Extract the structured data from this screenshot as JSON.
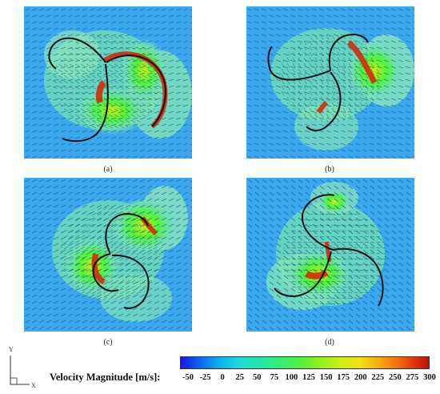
{
  "panels": [
    {
      "caption": "(a)"
    },
    {
      "caption": "(b)"
    },
    {
      "caption": "(c)"
    },
    {
      "caption": "(d)"
    }
  ],
  "colorbar": {
    "title": "Velocity Magnitude [m/s]:",
    "ticks": [
      "-50",
      "-25",
      "0",
      "25",
      "50",
      "75",
      "100",
      "125",
      "150",
      "175",
      "200",
      "225",
      "250",
      "275",
      "300"
    ],
    "range": [
      -50,
      300
    ],
    "colors": [
      "#1a16e8",
      "#0a6af0",
      "#0fb3f0",
      "#1fdcd8",
      "#24e6a8",
      "#34ee73",
      "#4ef33d",
      "#8ff21d",
      "#c9ef16",
      "#f3e113",
      "#f7a911",
      "#f06b0d",
      "#c01008"
    ]
  },
  "axes": {
    "y_label": "Y",
    "x_label": "X"
  },
  "colors": {
    "background_field": "#3aa9f0",
    "blade": "#111111",
    "high_velocity": "#d32a0c",
    "mid_velocity": "#6fdfb3"
  }
}
